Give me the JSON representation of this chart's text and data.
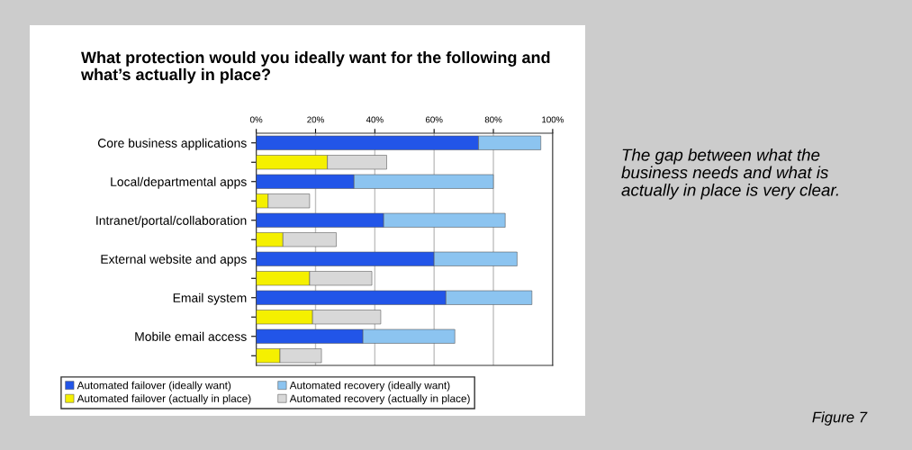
{
  "chart_data": {
    "type": "bar",
    "orientation": "horizontal",
    "stacked": true,
    "title": "What protection would you ideally want for the following and what’s actually in place?",
    "categories": [
      "Core business applications",
      null,
      "Local/departmental apps",
      null,
      "Intranet/portal/collaboration",
      null,
      "External website and apps",
      null,
      "Email system",
      null,
      "Mobile email access",
      null
    ],
    "series": [
      {
        "name": "Automated failover (ideally want)",
        "color": "#2255e8",
        "values": [
          75,
          null,
          33,
          null,
          43,
          null,
          60,
          null,
          64,
          null,
          36,
          null
        ]
      },
      {
        "name": "Automated recovery (ideally want)",
        "color": "#8cc4f0",
        "values": [
          21,
          null,
          47,
          null,
          41,
          null,
          28,
          null,
          29,
          null,
          31,
          null
        ]
      },
      {
        "name": "Automated failover (actually in place)",
        "color": "#f5f000",
        "values": [
          null,
          24,
          null,
          4,
          null,
          9,
          null,
          18,
          null,
          19,
          null,
          8
        ]
      },
      {
        "name": "Automated recovery (actually in place)",
        "color": "#d8d8d8",
        "values": [
          null,
          20,
          null,
          14,
          null,
          18,
          null,
          21,
          null,
          23,
          null,
          14
        ]
      }
    ],
    "xlim": [
      0,
      100
    ],
    "xticks": [
      {
        "value": 0,
        "label": "0%"
      },
      {
        "value": 20,
        "label": "20%"
      },
      {
        "value": 40,
        "label": "40%"
      },
      {
        "value": 60,
        "label": "60%"
      },
      {
        "value": 80,
        "label": "80%"
      },
      {
        "value": 100,
        "label": "100%"
      }
    ],
    "grid": "x",
    "legend": "bottom",
    "annotations": [
      "The gap between what the business needs and what is actually in place is very clear.",
      "Figure 7"
    ]
  }
}
